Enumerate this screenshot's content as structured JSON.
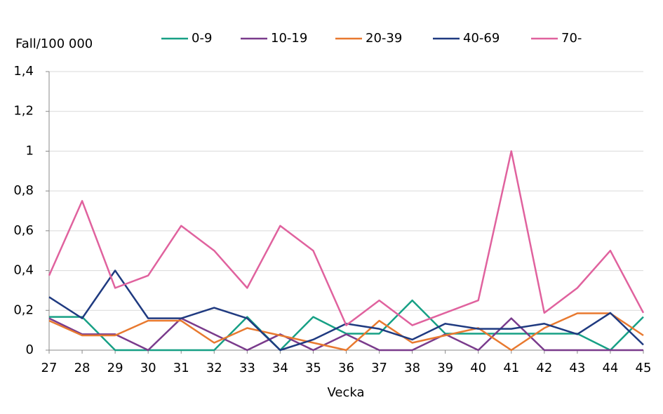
{
  "chart_data": {
    "type": "line",
    "y_label": "Fall/100 000",
    "x_label": "Vecka",
    "categories": [
      "27",
      "28",
      "29",
      "30",
      "31",
      "32",
      "33",
      "34",
      "35",
      "36",
      "37",
      "38",
      "39",
      "40",
      "41",
      "42",
      "43",
      "44",
      "45"
    ],
    "series": [
      {
        "name": "0-9",
        "color": "#17a085",
        "values": [
          0.167,
          0.167,
          0,
          0,
          0,
          0,
          0.167,
          0,
          0.167,
          0.083,
          0.083,
          0.25,
          0.083,
          0.083,
          0.083,
          0.083,
          0.083,
          0,
          0.167
        ]
      },
      {
        "name": "10-19",
        "color": "#7a3b8c",
        "values": [
          0.16,
          0.08,
          0.08,
          0,
          0.16,
          0.08,
          0,
          0.08,
          0,
          0.08,
          0,
          0,
          0.08,
          0,
          0.16,
          0,
          0,
          0,
          0
        ]
      },
      {
        "name": "20-39",
        "color": "#e8792f",
        "values": [
          0.148,
          0.074,
          0.074,
          0.148,
          0.148,
          0.037,
          0.111,
          0.074,
          0.037,
          0,
          0.148,
          0.037,
          0.074,
          0.111,
          0,
          0.111,
          0.185,
          0.185,
          0.074
        ]
      },
      {
        "name": "40-69",
        "color": "#1f3a80",
        "values": [
          0.267,
          0.16,
          0.4,
          0.16,
          0.16,
          0.213,
          0.16,
          0,
          0.053,
          0.133,
          0.107,
          0.053,
          0.133,
          0.107,
          0.107,
          0.133,
          0.08,
          0.187,
          0.027
        ]
      },
      {
        "name": "70-",
        "color": "#e0629e",
        "values": [
          0.375,
          0.75,
          0.3125,
          0.375,
          0.625,
          0.5,
          0.3125,
          0.625,
          0.5,
          0.125,
          0.25,
          0.125,
          0.1875,
          0.25,
          1,
          0.1875,
          0.3125,
          0.5,
          0.1875
        ]
      }
    ],
    "ylim": [
      0,
      1.4
    ],
    "yticks": [
      0,
      {
        "value": 0.2,
        "label": "0,2"
      },
      {
        "value": 0.4,
        "label": "0,4"
      },
      {
        "value": 0.6,
        "label": "0,6"
      },
      {
        "value": 0.8,
        "label": "0,8"
      },
      1,
      {
        "value": 1.2,
        "label": "1,2"
      },
      {
        "value": 1.4,
        "label": "1,4"
      }
    ],
    "grid": true
  }
}
